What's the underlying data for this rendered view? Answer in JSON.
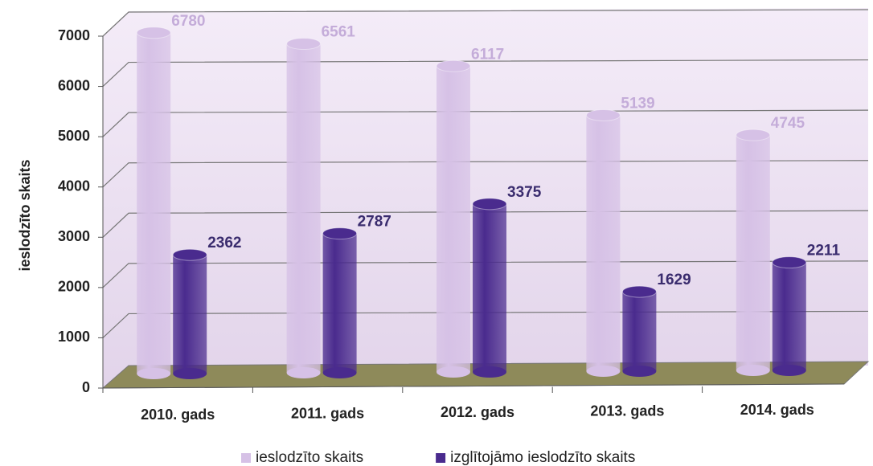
{
  "chart_data": {
    "type": "bar3d",
    "ylabel": "ieslodzīto skaits",
    "categories": [
      "2010. gads",
      "2011. gads",
      "2012. gads",
      "2013. gads",
      "2014. gads"
    ],
    "series": [
      {
        "name": "ieslodzīto skaits",
        "color": "#d6c1e6",
        "label_color": "#c4acd9",
        "values": [
          6780,
          6561,
          6117,
          5139,
          4745
        ]
      },
      {
        "name": "izglītojāmo ieslodzīto skaits",
        "color": "#4a2b8e",
        "label_color": "#3a2c6e",
        "values": [
          2362,
          2787,
          3375,
          1629,
          2211
        ]
      }
    ],
    "ylim": [
      0,
      7000
    ],
    "yticks": [
      0,
      1000,
      2000,
      3000,
      4000,
      5000,
      6000,
      7000
    ],
    "grid": true,
    "legend": "bottom"
  }
}
